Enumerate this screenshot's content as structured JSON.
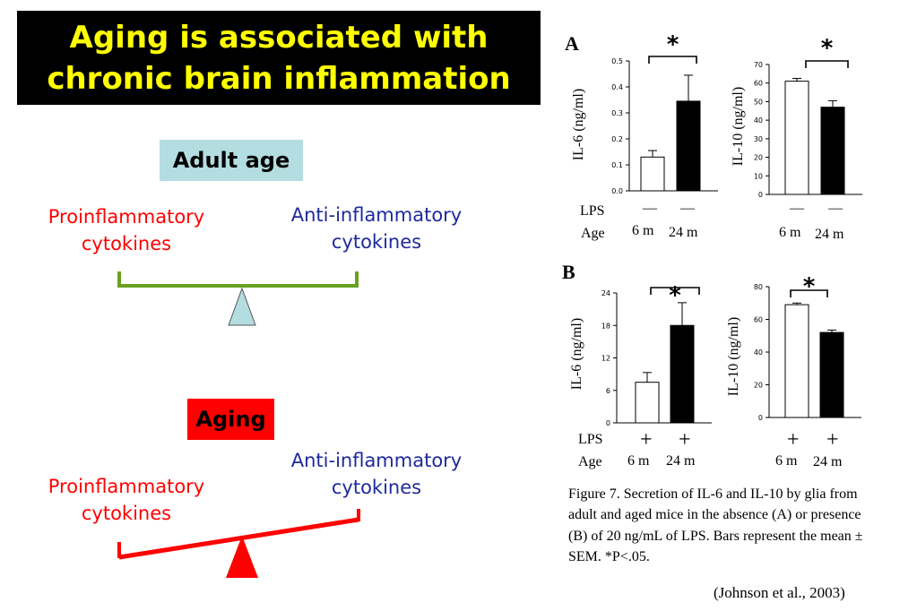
{
  "title": {
    "line1": "Aging is associated with",
    "line2": "chronic brain inflammation"
  },
  "adult": {
    "label": "Adult age",
    "pro": [
      "Proinflammatory",
      "cytokines"
    ],
    "anti": [
      "Anti-inflammatory",
      "cytokines"
    ]
  },
  "aging": {
    "label": "Aging",
    "pro": [
      "Proinflammatory",
      "cytokines"
    ],
    "anti": [
      "Anti-inflammatory",
      "cytokines"
    ]
  },
  "colors": {
    "title_bg": "#000000",
    "title_text": "#ffff00",
    "adult_tag": "#b4dde2",
    "aging_tag": "#ff0000",
    "pro": "#ff0000",
    "anti": "#1e2a9c",
    "balance_green": "#6aa121",
    "balance_red": "#ff0000"
  },
  "panels": {
    "A": {
      "letter": "A",
      "lps_label": "LPS",
      "age_label": "Age",
      "lps_values": [
        "—",
        "—",
        "—",
        "—"
      ],
      "ages": [
        "6 m",
        "24 m",
        "6 m",
        "24 m"
      ]
    },
    "B": {
      "letter": "B",
      "lps_label": "LPS",
      "age_label": "Age",
      "lps_values": [
        "+",
        "+",
        "+",
        "+"
      ],
      "ages": [
        "6 m",
        "24 m",
        "6 m",
        "24 m"
      ]
    }
  },
  "chart_data": [
    {
      "type": "bar",
      "panel": "A",
      "ylabel": "IL-6 (ng/ml)",
      "categories": [
        "6 m",
        "24 m"
      ],
      "values": [
        0.13,
        0.345
      ],
      "errors": [
        0.025,
        0.1
      ],
      "ylim": [
        0,
        0.5
      ],
      "yticks": [
        "0.0",
        "0.1",
        "0.2",
        "0.3",
        "0.4",
        "0.5"
      ],
      "bar_colors": [
        "#ffffff",
        "#000000"
      ],
      "significance": "*"
    },
    {
      "type": "bar",
      "panel": "A",
      "ylabel": "IL-10 (ng/ml)",
      "categories": [
        "6 m",
        "24 m"
      ],
      "values": [
        61,
        47
      ],
      "errors": [
        1.5,
        3.5
      ],
      "ylim": [
        0,
        70
      ],
      "yticks": [
        "0",
        "10",
        "20",
        "30",
        "40",
        "50",
        "60",
        "70"
      ],
      "bar_colors": [
        "#ffffff",
        "#000000"
      ],
      "significance": "*"
    },
    {
      "type": "bar",
      "panel": "B",
      "ylabel": "IL-6 (ng/ml)",
      "categories": [
        "6 m",
        "24 m"
      ],
      "values": [
        7.5,
        18
      ],
      "errors": [
        1.8,
        4.2
      ],
      "ylim": [
        0,
        24
      ],
      "yticks": [
        "0",
        "6",
        "12",
        "18",
        "24"
      ],
      "bar_colors": [
        "#ffffff",
        "#000000"
      ],
      "significance": "*"
    },
    {
      "type": "bar",
      "panel": "B",
      "ylabel": "IL-10 (ng/ml)",
      "categories": [
        "6 m",
        "24 m"
      ],
      "values": [
        69,
        52
      ],
      "errors": [
        1,
        1.5
      ],
      "ylim": [
        0,
        80
      ],
      "yticks": [
        "0",
        "20",
        "40",
        "60",
        "80"
      ],
      "bar_colors": [
        "#ffffff",
        "#000000"
      ],
      "significance": "*"
    }
  ],
  "caption": "Figure 7.  Secretion of IL-6 and IL-10 by glia from adult and aged mice in the absence (A) or presence (B) of 20 ng/mL of LPS.  Bars represent the mean ± SEM.  *P<.05.",
  "citation": "(Johnson et al., 2003)"
}
